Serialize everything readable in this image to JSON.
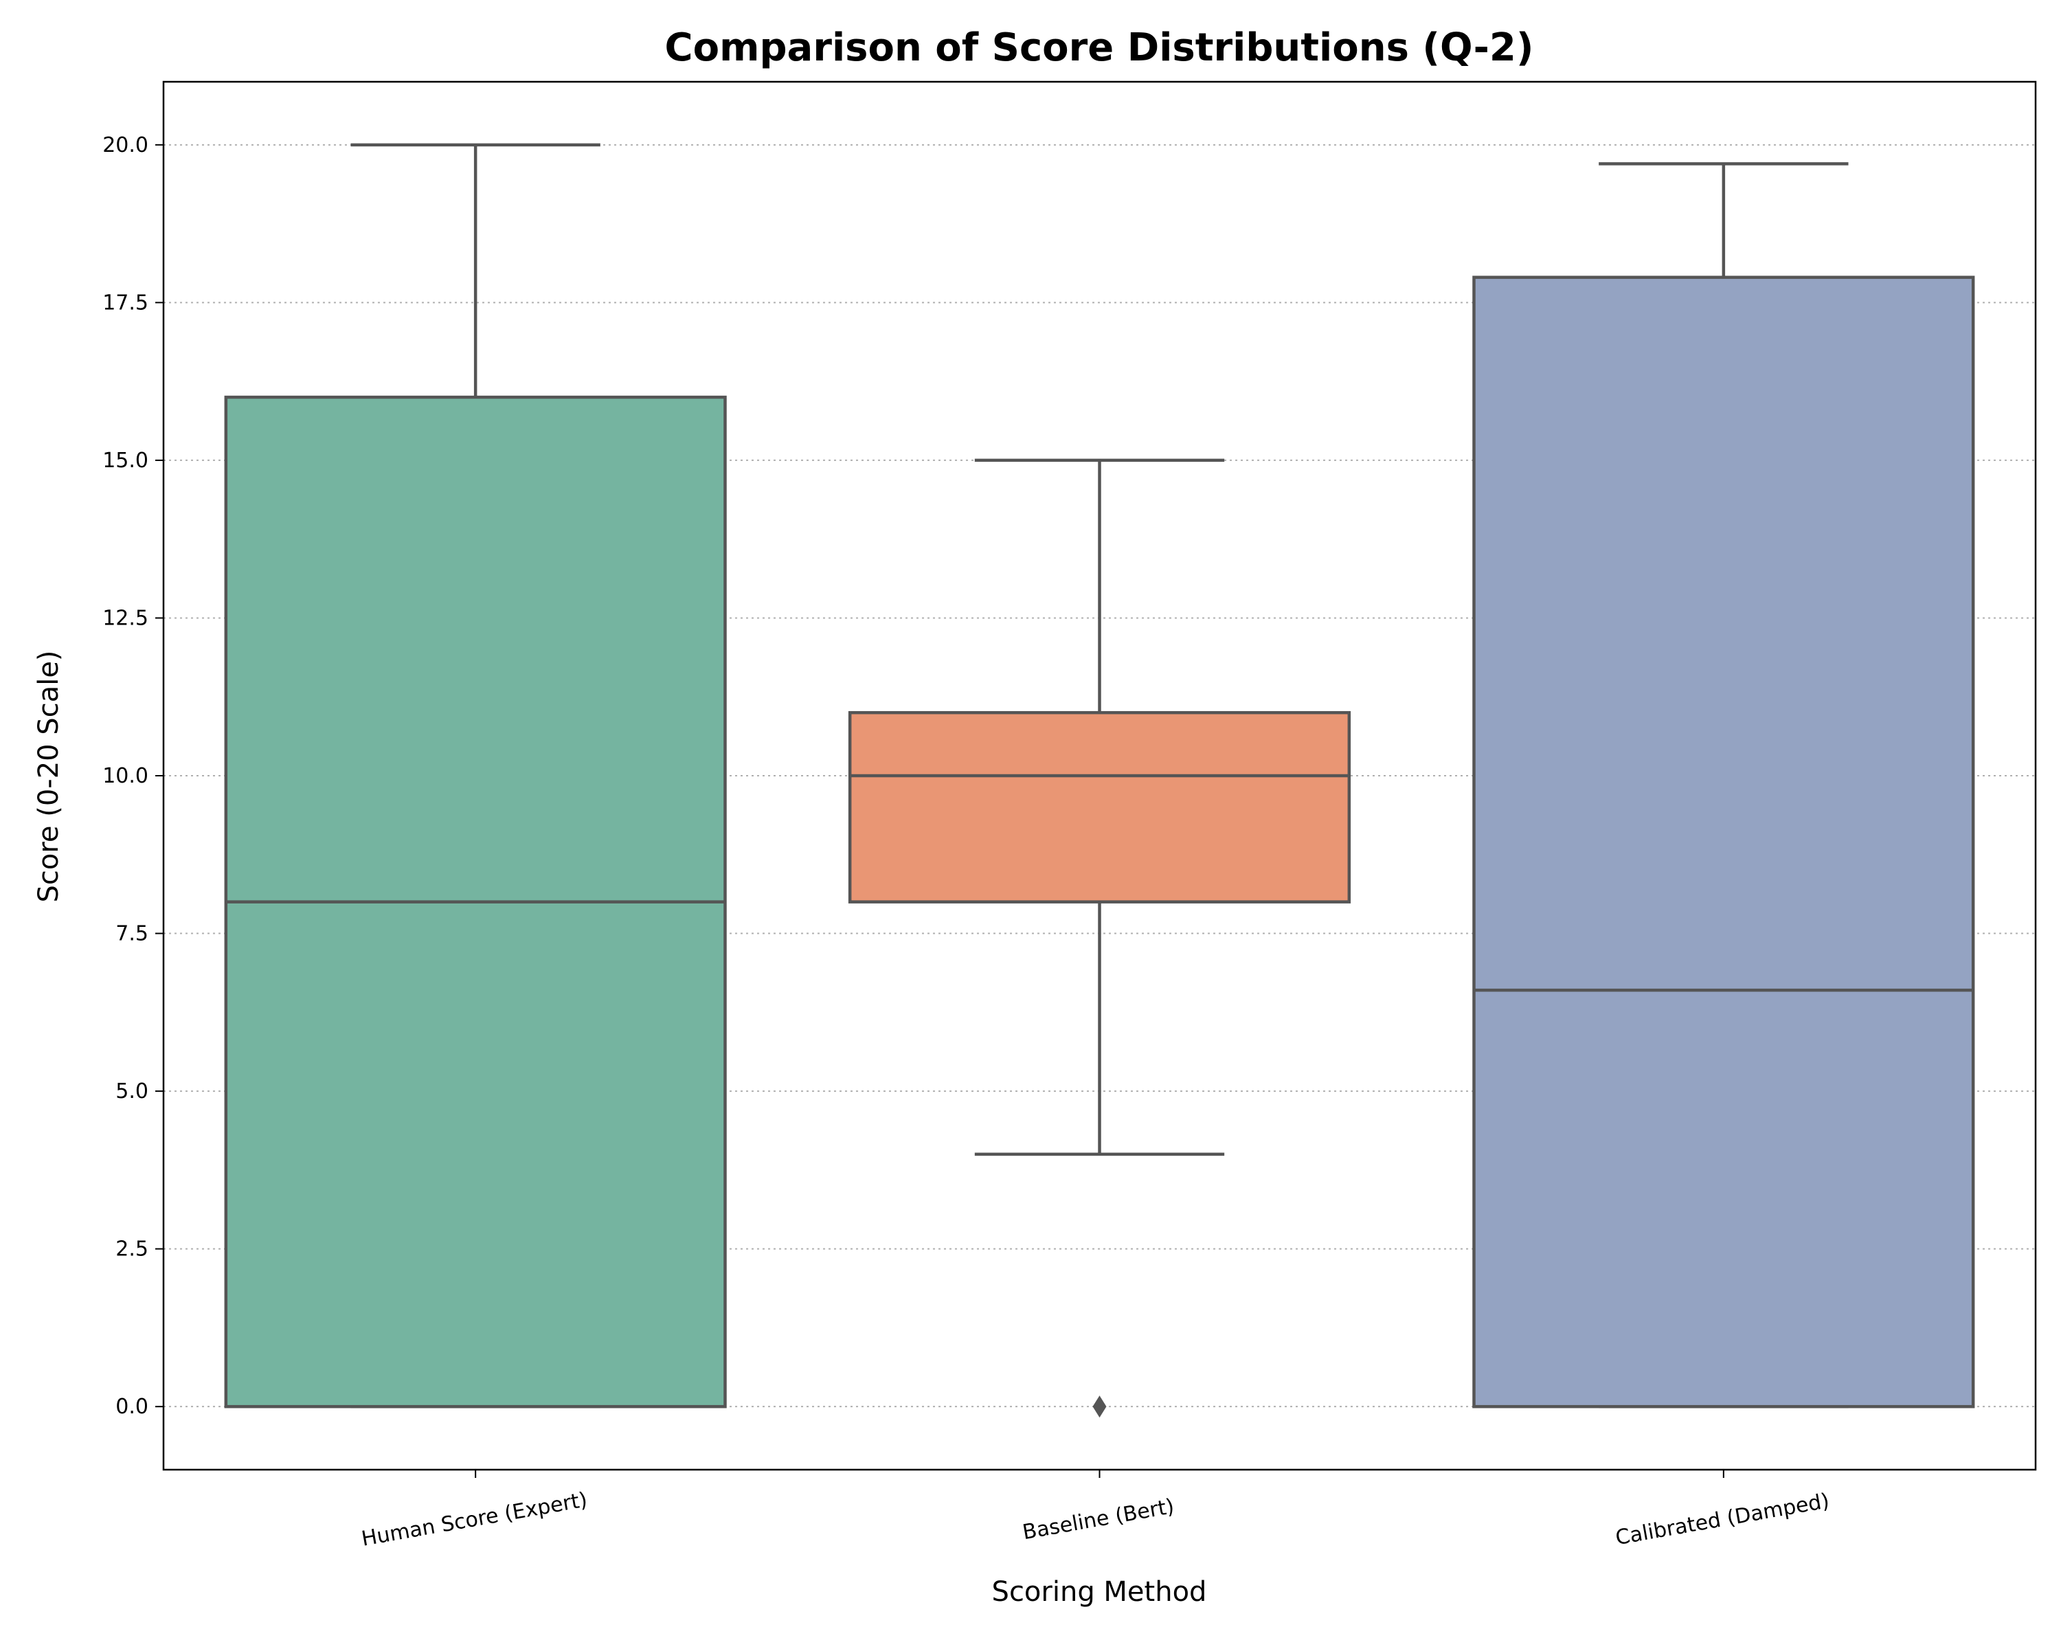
{
  "chart_data": {
    "type": "box",
    "title": "Comparison of Score Distributions (Q-2)",
    "xlabel": "Scoring Method",
    "ylabel": "Score (0-20 Scale)",
    "ylim": [
      -1,
      21
    ],
    "yticks": [
      "0.0",
      "2.5",
      "5.0",
      "7.5",
      "10.0",
      "12.5",
      "15.0",
      "17.5",
      "20.0"
    ],
    "ytick_values": [
      0,
      2.5,
      5,
      7.5,
      10,
      12.5,
      15,
      17.5,
      20
    ],
    "grid": "y-dotted",
    "categories": [
      "Human Score (Expert)",
      "Baseline (Bert)",
      "Calibrated (Damped)"
    ],
    "boxes": [
      {
        "category": "Human Score (Expert)",
        "whisker_low": 0,
        "q1": 0,
        "median": 8,
        "q3": 16,
        "whisker_high": 20,
        "outliers": [],
        "color": "#75b4a0"
      },
      {
        "category": "Baseline (Bert)",
        "whisker_low": 4,
        "q1": 8,
        "median": 10,
        "q3": 11,
        "whisker_high": 15,
        "outliers": [
          0
        ],
        "color": "#e99674"
      },
      {
        "category": "Calibrated (Damped)",
        "whisker_low": 0,
        "q1": 0,
        "median": 6.6,
        "q3": 17.9,
        "whisker_high": 19.7,
        "outliers": [],
        "color": "#94a3c2"
      }
    ],
    "line_color": "#555555"
  }
}
